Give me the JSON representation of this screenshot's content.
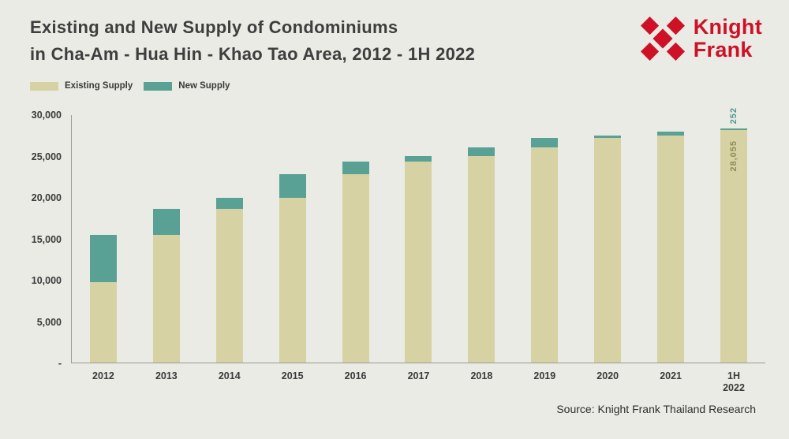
{
  "header": {
    "title_line1": "Existing and New Supply of Condominiums",
    "title_line2": "in Cha-Am - Hua Hin - Khao Tao Area, 2012 - 1H 2022",
    "logo_line1": "Knight",
    "logo_line2": "Frank"
  },
  "legend": [
    {
      "label": "Existing Supply",
      "color": "#d6d2a3"
    },
    {
      "label": "New Supply",
      "color": "#59a195"
    }
  ],
  "colors": {
    "background": "#e9ebe4",
    "existing_supply": "#d6d2a3",
    "new_supply": "#59a195",
    "brand_red": "#ce1127",
    "axis": "#9b9e94",
    "annotation_new": "#4f9a8e",
    "annotation_existing": "#8f8c54"
  },
  "chart_data": {
    "type": "bar",
    "stacked": true,
    "title": "Existing and New Supply of Condominiums in Cha-Am - Hua Hin - Khao Tao Area, 2012 - 1H 2022",
    "xlabel": "",
    "ylabel": "",
    "ylim": [
      0,
      30000
    ],
    "ytick_step": 5000,
    "ytick_labels": [
      "-",
      "5,000",
      "10,000",
      "15,000",
      "20,000",
      "25,000",
      "30,000"
    ],
    "grid": false,
    "legend_position": "top-left",
    "categories": [
      "2012",
      "2013",
      "2014",
      "2015",
      "2016",
      "2017",
      "2018",
      "2019",
      "2020",
      "2021",
      "1H 2022"
    ],
    "series": [
      {
        "name": "Existing Supply",
        "color": "#d6d2a3",
        "values": [
          9700,
          15400,
          18600,
          19900,
          22800,
          24300,
          25000,
          26000,
          27100,
          27400,
          28055
        ]
      },
      {
        "name": "New Supply",
        "color": "#59a195",
        "values": [
          5700,
          3200,
          1300,
          2900,
          1500,
          700,
          1000,
          1100,
          300,
          500,
          252
        ]
      }
    ],
    "annotations": [
      {
        "category": "1H 2022",
        "series": "New Supply",
        "text": "252"
      },
      {
        "category": "1H 2022",
        "series": "Existing Supply",
        "text": "28,055"
      }
    ]
  },
  "footer": {
    "source": "Source: Knight Frank Thailand Research"
  }
}
